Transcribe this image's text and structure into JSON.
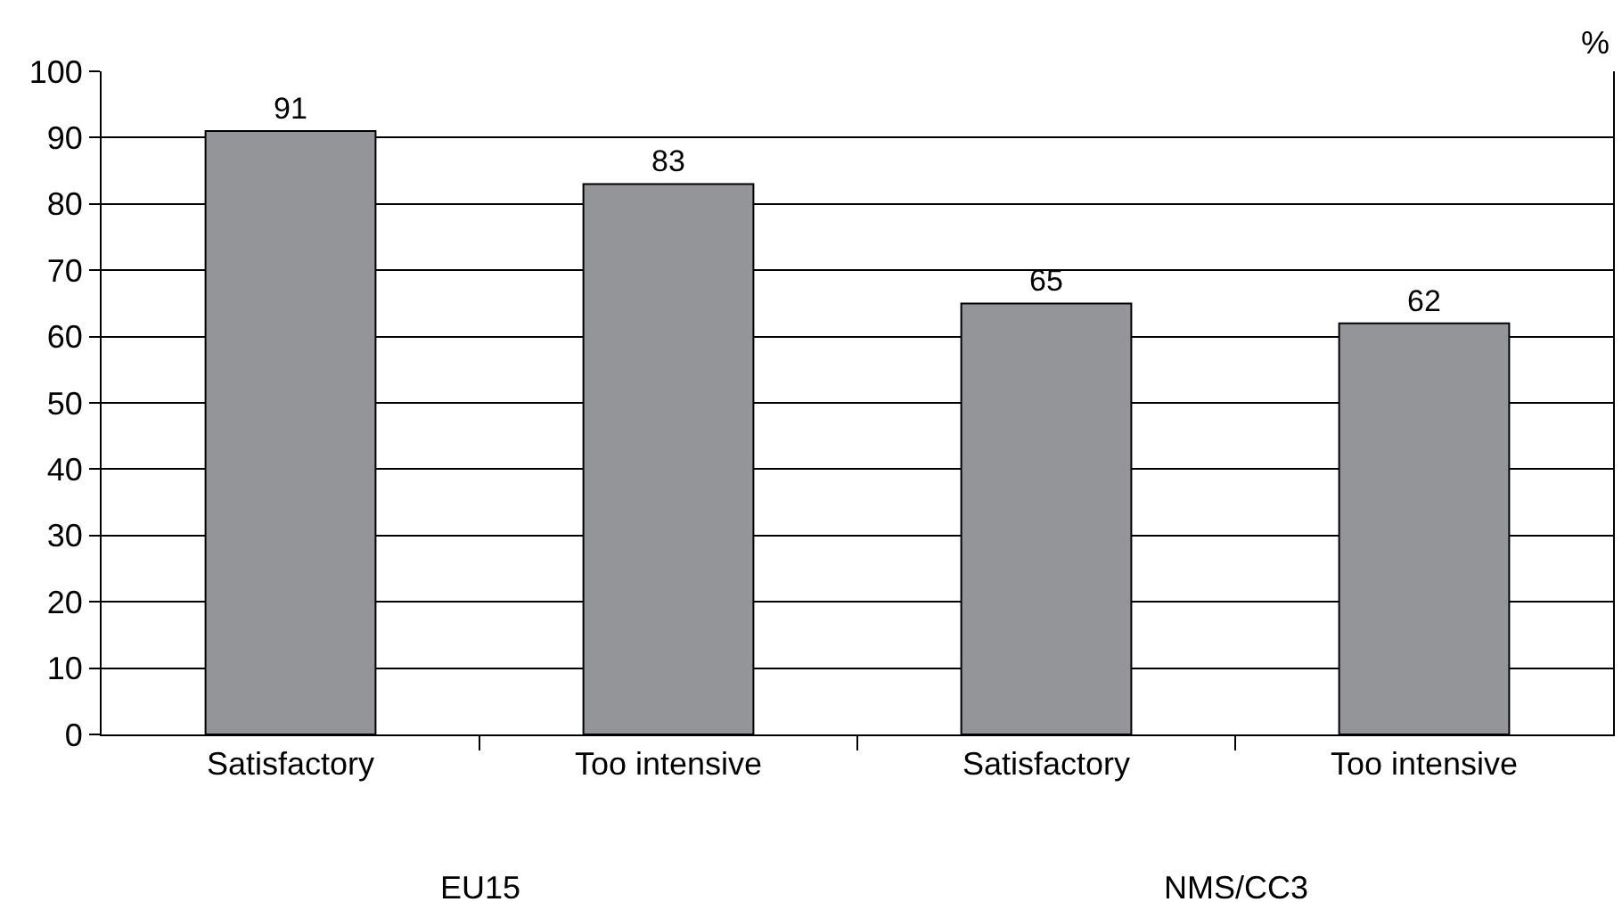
{
  "chart_data": {
    "type": "bar",
    "ylabel": "%",
    "categories": [
      "Satisfactory",
      "Too intensive",
      "Satisfactory",
      "Too intensive"
    ],
    "values": [
      91,
      83,
      65,
      62
    ],
    "color": "#939598",
    "ylim": [
      0,
      100
    ],
    "yticks": [
      0,
      10,
      20,
      30,
      40,
      50,
      60,
      70,
      80,
      90,
      100
    ],
    "grid": "y",
    "data_labels": true,
    "annotations": [
      "EU15",
      "NMS/CC3"
    ]
  }
}
